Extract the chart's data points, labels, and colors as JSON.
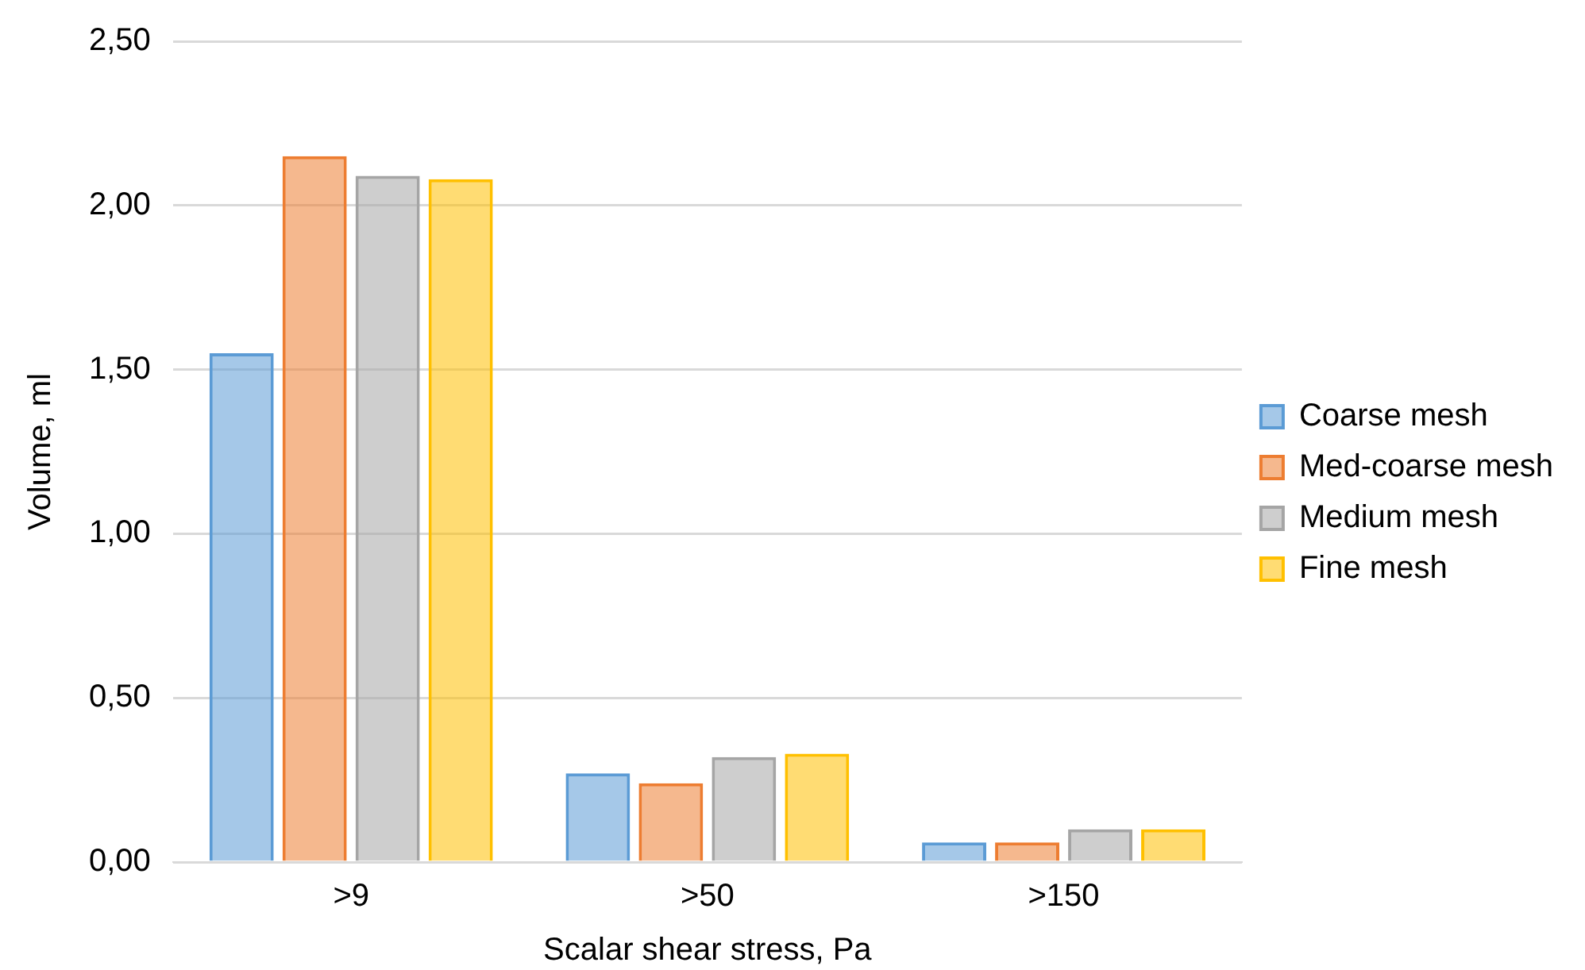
{
  "chart_data": {
    "type": "bar",
    "xlabel": "Scalar shear stress, Pa",
    "ylabel": "Volume, ml",
    "categories": [
      ">9",
      ">50",
      ">150"
    ],
    "series": [
      {
        "name": "Coarse mesh",
        "color": "#5b9bd5",
        "values": [
          1.55,
          0.27,
          0.06
        ]
      },
      {
        "name": "Med-coarse mesh",
        "color": "#ed7d31",
        "values": [
          2.15,
          0.24,
          0.06
        ]
      },
      {
        "name": "Medium mesh",
        "color": "#a5a5a5",
        "values": [
          2.09,
          0.32,
          0.1
        ]
      },
      {
        "name": "Fine mesh",
        "color": "#ffc000",
        "values": [
          2.08,
          0.33,
          0.1
        ]
      }
    ],
    "ylim": [
      0,
      2.5
    ],
    "yticks": [
      {
        "value": 0,
        "label": "0,00"
      },
      {
        "value": 0.5,
        "label": "0,50"
      },
      {
        "value": 1,
        "label": "1,00"
      },
      {
        "value": 1.5,
        "label": "1,50"
      },
      {
        "value": 2,
        "label": "2,00"
      },
      {
        "value": 2.5,
        "label": "2,50"
      }
    ],
    "grid": "y",
    "legend": "right"
  }
}
